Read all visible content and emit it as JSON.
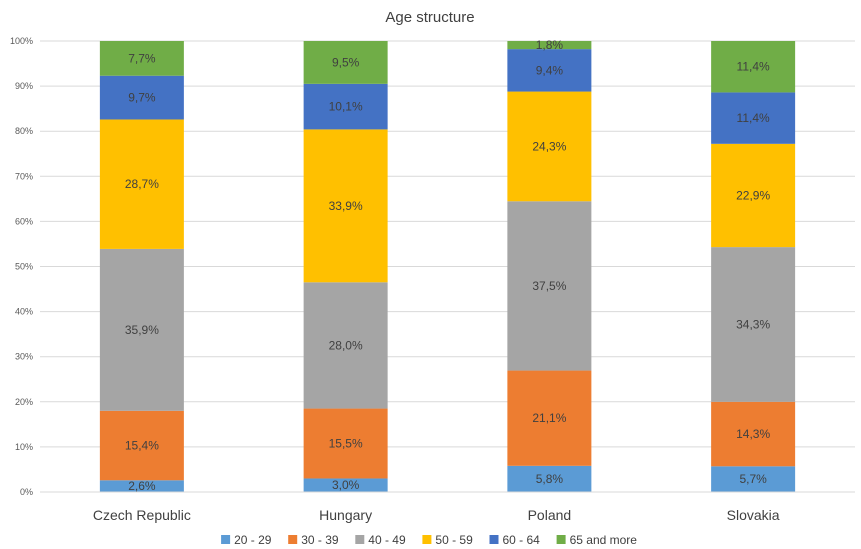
{
  "chart_data": {
    "type": "bar",
    "stacked": true,
    "percent_stacked": true,
    "title": "Age structure",
    "xlabel": "",
    "ylabel": "",
    "ylim": [
      0,
      100
    ],
    "y_ticks": [
      "0%",
      "10%",
      "20%",
      "30%",
      "40%",
      "50%",
      "60%",
      "70%",
      "80%",
      "90%",
      "100%"
    ],
    "categories": [
      "Czech Republic",
      "Hungary",
      "Poland",
      "Slovakia"
    ],
    "series": [
      {
        "name": "20 - 29",
        "color": "#5B9BD5",
        "values": [
          2.6,
          3.0,
          5.8,
          5.7
        ],
        "labels": [
          "2,6%",
          "3,0%",
          "5,8%",
          "5,7%"
        ]
      },
      {
        "name": "30 - 39",
        "color": "#ED7D31",
        "values": [
          15.4,
          15.5,
          21.1,
          14.3
        ],
        "labels": [
          "15,4%",
          "15,5%",
          "21,1%",
          "14,3%"
        ]
      },
      {
        "name": "40 - 49",
        "color": "#A5A5A5",
        "values": [
          35.9,
          28.0,
          37.5,
          34.3
        ],
        "labels": [
          "35,9%",
          "28,0%",
          "37,5%",
          "34,3%"
        ]
      },
      {
        "name": "50 - 59",
        "color": "#FFC000",
        "values": [
          28.7,
          33.9,
          24.3,
          22.9
        ],
        "labels": [
          "28,7%",
          "33,9%",
          "24,3%",
          "22,9%"
        ]
      },
      {
        "name": "60 - 64",
        "color": "#4472C4",
        "values": [
          9.7,
          10.1,
          9.4,
          11.4
        ],
        "labels": [
          "9,7%",
          "10,1%",
          "9,4%",
          "11,4%"
        ]
      },
      {
        "name": "65 and more",
        "color": "#70AD47",
        "values": [
          7.7,
          9.5,
          1.8,
          11.4
        ],
        "labels": [
          "7,7%",
          "9,5%",
          "1,8%",
          "11,4%"
        ]
      }
    ],
    "grid": true,
    "legend_position": "bottom"
  }
}
